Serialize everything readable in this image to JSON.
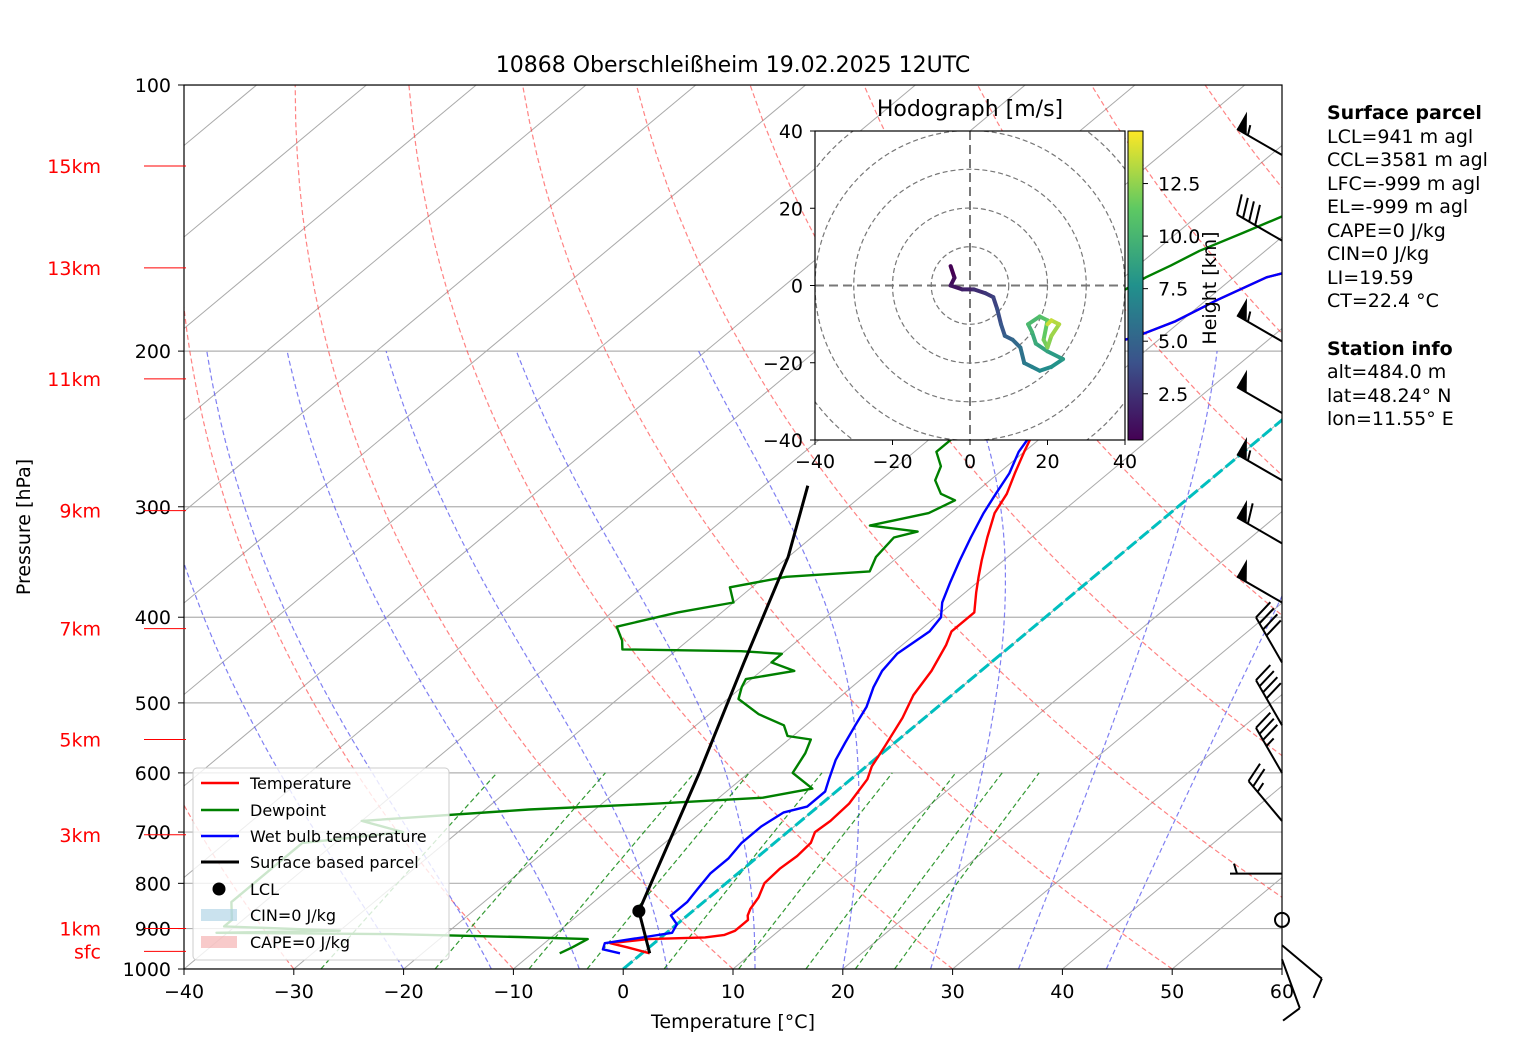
{
  "chart_data": {
    "type": "line",
    "title": "10868 Oberschleißheim 19.02.2025 12UTC",
    "xlabel": "Temperature [°C]",
    "ylabel": "Pressure [hPa]",
    "xlim": [
      -40,
      60
    ],
    "ylim": [
      1000,
      100
    ],
    "y_scale": "log",
    "x_ticks": [
      "−40",
      "−30",
      "−20",
      "−10",
      "0",
      "10",
      "20",
      "30",
      "40",
      "50",
      "60"
    ],
    "y_ticks": [
      "100",
      "200",
      "300",
      "400",
      "500",
      "600",
      "700",
      "800",
      "900",
      "1000"
    ],
    "height_labels": [
      {
        "label": "15km",
        "p": 123.5
      },
      {
        "label": "13km",
        "p": 161
      },
      {
        "label": "11km",
        "p": 215
      },
      {
        "label": "9km",
        "p": 303
      },
      {
        "label": "7km",
        "p": 412
      },
      {
        "label": "5km",
        "p": 550
      },
      {
        "label": "3km",
        "p": 705
      },
      {
        "label": "1km",
        "p": 900
      },
      {
        "label": "sfc",
        "p": 955
      }
    ],
    "series": [
      {
        "name": "Temperature",
        "color": "#ff0000",
        "points": [
          [
            0.7,
            960
          ],
          [
            -2,
            945
          ],
          [
            -4,
            935
          ],
          [
            -1,
            925
          ],
          [
            4,
            921
          ],
          [
            5.5,
            915
          ],
          [
            6,
            905
          ],
          [
            6,
            890
          ],
          [
            6,
            880
          ],
          [
            5.5,
            870
          ],
          [
            5,
            855
          ],
          [
            4.5,
            830
          ],
          [
            3.5,
            800
          ],
          [
            3.3,
            770
          ],
          [
            3.5,
            745
          ],
          [
            3.3,
            720
          ],
          [
            2.5,
            700
          ],
          [
            2.7,
            680
          ],
          [
            2.5,
            650
          ],
          [
            1.5,
            610
          ],
          [
            0.5,
            590
          ],
          [
            -0.5,
            560
          ],
          [
            -2,
            520
          ],
          [
            -3.5,
            490
          ],
          [
            -4.5,
            460
          ],
          [
            -6,
            430
          ],
          [
            -7,
            415
          ],
          [
            -7,
            395
          ],
          [
            -9,
            375
          ],
          [
            -10.5,
            360
          ],
          [
            -12,
            345
          ],
          [
            -14,
            325
          ],
          [
            -16,
            305
          ],
          [
            -17,
            290
          ],
          [
            -18.5,
            275
          ],
          [
            -20,
            260
          ],
          [
            -21.5,
            245
          ],
          [
            -22.5,
            232
          ],
          [
            -24,
            217
          ],
          [
            -25,
            205
          ],
          [
            -25.5,
            200
          ],
          [
            -24.5,
            197
          ],
          [
            -22.5,
            193
          ],
          [
            -20.5,
            185
          ],
          [
            -19,
            175
          ],
          [
            -17,
            165
          ],
          [
            -14,
            160
          ],
          [
            -10,
            155
          ],
          [
            -9,
            148
          ],
          [
            -6,
            142
          ],
          [
            -4,
            138
          ],
          [
            -2,
            133
          ],
          [
            -2.5,
            128
          ],
          [
            -0.5,
            123
          ],
          [
            -1,
            119
          ],
          [
            1,
            115
          ],
          [
            2,
            111
          ],
          [
            2.5,
            109
          ],
          [
            3,
            108
          ]
        ]
      },
      {
        "name": "Dewpoint",
        "color": "#008000",
        "points": [
          [
            -7.5,
            960
          ],
          [
            -7,
            945
          ],
          [
            -6.5,
            925
          ],
          [
            -13,
            920
          ],
          [
            -25,
            913
          ],
          [
            -41,
            910
          ],
          [
            -30,
            905
          ],
          [
            -41,
            895
          ],
          [
            -41,
            880
          ],
          [
            -43,
            840
          ],
          [
            -43,
            800
          ],
          [
            -43,
            760
          ],
          [
            -43,
            720
          ],
          [
            -35,
            700
          ],
          [
            -40,
            680
          ],
          [
            -26,
            660
          ],
          [
            -15,
            650
          ],
          [
            -6,
            640
          ],
          [
            -2.5,
            625
          ],
          [
            -6,
            600
          ],
          [
            -7,
            570
          ],
          [
            -8,
            550
          ],
          [
            -10.5,
            545
          ],
          [
            -12,
            530
          ],
          [
            -15.5,
            515
          ],
          [
            -19,
            495
          ],
          [
            -20,
            480
          ],
          [
            -20.5,
            470
          ],
          [
            -17,
            460
          ],
          [
            -20,
            450
          ],
          [
            -20,
            440
          ],
          [
            -24,
            437
          ],
          [
            -35,
            435
          ],
          [
            -36,
            425
          ],
          [
            -38,
            410
          ],
          [
            -34,
            395
          ],
          [
            -30,
            385
          ],
          [
            -32,
            370
          ],
          [
            -28,
            360
          ],
          [
            -21,
            355
          ],
          [
            -22,
            342
          ],
          [
            -22.5,
            325
          ],
          [
            -21,
            320
          ],
          [
            -26,
            315
          ],
          [
            -22,
            305
          ],
          [
            -21,
            295
          ],
          [
            -23,
            290
          ],
          [
            -25,
            280
          ],
          [
            -26,
            270
          ],
          [
            -28,
            260
          ],
          [
            -28,
            245
          ],
          [
            -28,
            235
          ],
          [
            -27,
            225
          ],
          [
            -27,
            215
          ],
          [
            -30,
            205
          ],
          [
            -31.5,
            200
          ],
          [
            -29,
            192
          ],
          [
            -29,
            185
          ],
          [
            -29,
            175
          ],
          [
            -28,
            165
          ],
          [
            -27,
            160
          ],
          [
            -26,
            154
          ],
          [
            -24,
            147
          ],
          [
            -22,
            140
          ],
          [
            -20,
            133
          ],
          [
            -17,
            127
          ],
          [
            -16,
            122
          ]
        ]
      },
      {
        "name": "Wet bulb temperature",
        "color": "#0000ff",
        "points": [
          [
            -2,
            960
          ],
          [
            -4,
            950
          ],
          [
            -4.5,
            935
          ],
          [
            -1.5,
            920
          ],
          [
            0.5,
            910
          ],
          [
            0,
            890
          ],
          [
            -1.5,
            870
          ],
          [
            -1.5,
            840
          ],
          [
            -2,
            810
          ],
          [
            -2.5,
            780
          ],
          [
            -2.5,
            750
          ],
          [
            -3,
            720
          ],
          [
            -3,
            690
          ],
          [
            -2.5,
            665
          ],
          [
            -1,
            655
          ],
          [
            -1,
            630
          ],
          [
            -2,
            610
          ],
          [
            -3.5,
            580
          ],
          [
            -4.5,
            555
          ],
          [
            -5.5,
            530
          ],
          [
            -6.5,
            505
          ],
          [
            -8,
            480
          ],
          [
            -9,
            460
          ],
          [
            -9.5,
            440
          ],
          [
            -9,
            415
          ],
          [
            -9.5,
            400
          ],
          [
            -11,
            385
          ],
          [
            -12.5,
            365
          ],
          [
            -14,
            345
          ],
          [
            -15.5,
            325
          ],
          [
            -17,
            305
          ],
          [
            -18,
            290
          ],
          [
            -19,
            275
          ],
          [
            -20.5,
            260
          ],
          [
            -21.5,
            245
          ],
          [
            -23,
            232
          ],
          [
            -24,
            217
          ],
          [
            -25,
            205
          ],
          [
            -25.5,
            200
          ],
          [
            -24.5,
            197
          ],
          [
            -22.5,
            193
          ],
          [
            -20.5,
            185
          ],
          [
            -19,
            175
          ],
          [
            -17,
            165
          ],
          [
            -14,
            160
          ],
          [
            -10,
            155
          ],
          [
            -9,
            148
          ],
          [
            -6,
            142
          ],
          [
            -4,
            138
          ],
          [
            -2,
            133
          ],
          [
            -2.5,
            128
          ],
          [
            -0.5,
            123
          ],
          [
            -1,
            119
          ],
          [
            1,
            115
          ],
          [
            2,
            111
          ],
          [
            2.5,
            109
          ],
          [
            3,
            108
          ]
        ]
      },
      {
        "name": "Surface based parcel",
        "color": "#000000",
        "points": [
          [
            0.7,
            960
          ],
          [
            -4.9,
            860
          ],
          [
            -14.5,
            600
          ],
          [
            -22.5,
            450
          ],
          [
            -30,
            342
          ],
          [
            -36,
            284
          ]
        ]
      }
    ],
    "lcl": {
      "label": "LCL",
      "t": -4.9,
      "p": 860
    },
    "legend": {
      "placement": "lower-left",
      "entries": [
        "Temperature",
        "Dewpoint",
        "Wet bulb temperature",
        "Surface based parcel",
        "LCL",
        "CIN=0 J/kg",
        "CAPE=0 J/kg"
      ]
    },
    "hodograph": {
      "title": "Hodograph [m/s]",
      "xlim": [
        -40,
        40
      ],
      "ylim": [
        -40,
        40
      ],
      "ticks": [
        "−40",
        "−20",
        "0",
        "20",
        "40"
      ],
      "y_ticks": [
        "40",
        "20",
        "0",
        "−20",
        "−40"
      ],
      "colorbar_label": "Height [km]",
      "colorbar_ticks": [
        "2.5",
        "5.0",
        "7.5",
        "10.0",
        "12.5"
      ],
      "colorbar_values": [
        2.5,
        5.0,
        7.5,
        10.0,
        12.5
      ],
      "colorbar_range": [
        0.3,
        15
      ],
      "trace": [
        [
          -5,
          5,
          0.3
        ],
        [
          -4,
          2,
          0.8
        ],
        [
          -5,
          0,
          1.2
        ],
        [
          -2,
          -1,
          1.8
        ],
        [
          1,
          -1,
          2.3
        ],
        [
          4,
          -2,
          2.8
        ],
        [
          6,
          -3,
          3.3
        ],
        [
          7,
          -6,
          3.8
        ],
        [
          8,
          -10,
          4.3
        ],
        [
          9,
          -13,
          4.8
        ],
        [
          11,
          -14,
          5.3
        ],
        [
          13,
          -16,
          5.8
        ],
        [
          14,
          -20,
          6.3
        ],
        [
          16,
          -21,
          6.8
        ],
        [
          18,
          -22,
          7.3
        ],
        [
          21,
          -21,
          7.8
        ],
        [
          24,
          -19,
          8.3
        ],
        [
          20,
          -17,
          8.8
        ],
        [
          17,
          -15,
          9.3
        ],
        [
          16,
          -12,
          9.8
        ],
        [
          15,
          -10,
          10.3
        ],
        [
          18,
          -8,
          10.8
        ],
        [
          20,
          -9,
          11.3
        ],
        [
          19,
          -14,
          11.8
        ],
        [
          20,
          -16,
          12.3
        ],
        [
          21,
          -13,
          12.8
        ],
        [
          23,
          -10,
          13.3
        ],
        [
          21,
          -9,
          13.8
        ],
        [
          20,
          -10,
          14.3
        ]
      ]
    },
    "wind_barbs": [
      {
        "p": 120,
        "dir": 300,
        "kt": 55
      },
      {
        "p": 150,
        "dir": 300,
        "kt": 40
      },
      {
        "p": 195,
        "dir": 300,
        "kt": 55
      },
      {
        "p": 235,
        "dir": 300,
        "kt": 50
      },
      {
        "p": 280,
        "dir": 300,
        "kt": 55
      },
      {
        "p": 330,
        "dir": 300,
        "kt": 60
      },
      {
        "p": 385,
        "dir": 300,
        "kt": 50
      },
      {
        "p": 450,
        "dir": 330,
        "kt": 40
      },
      {
        "p": 530,
        "dir": 330,
        "kt": 40
      },
      {
        "p": 600,
        "dir": 330,
        "kt": 35
      },
      {
        "p": 680,
        "dir": 320,
        "kt": 25
      },
      {
        "p": 780,
        "dir": 270,
        "kt": 5
      },
      {
        "p": 880,
        "dir": 0,
        "kt": 0
      },
      {
        "p": 940,
        "dir": 130,
        "kt": 10
      },
      {
        "p": 975,
        "dir": 160,
        "kt": 10
      }
    ]
  },
  "info": {
    "surface_parcel": {
      "heading": "Surface parcel",
      "lines": [
        "LCL=941 m agl",
        "CCL=3581 m agl",
        "LFC=-999 m agl",
        "EL=-999 m agl",
        "CAPE=0 J/kg",
        "CIN=0 J/kg",
        "LI=19.59",
        "CT=22.4 °C"
      ]
    },
    "station_info": {
      "heading": "Station info",
      "lines": [
        "alt=484.0 m",
        "lat=48.24° N",
        "lon=11.55° E"
      ]
    }
  }
}
